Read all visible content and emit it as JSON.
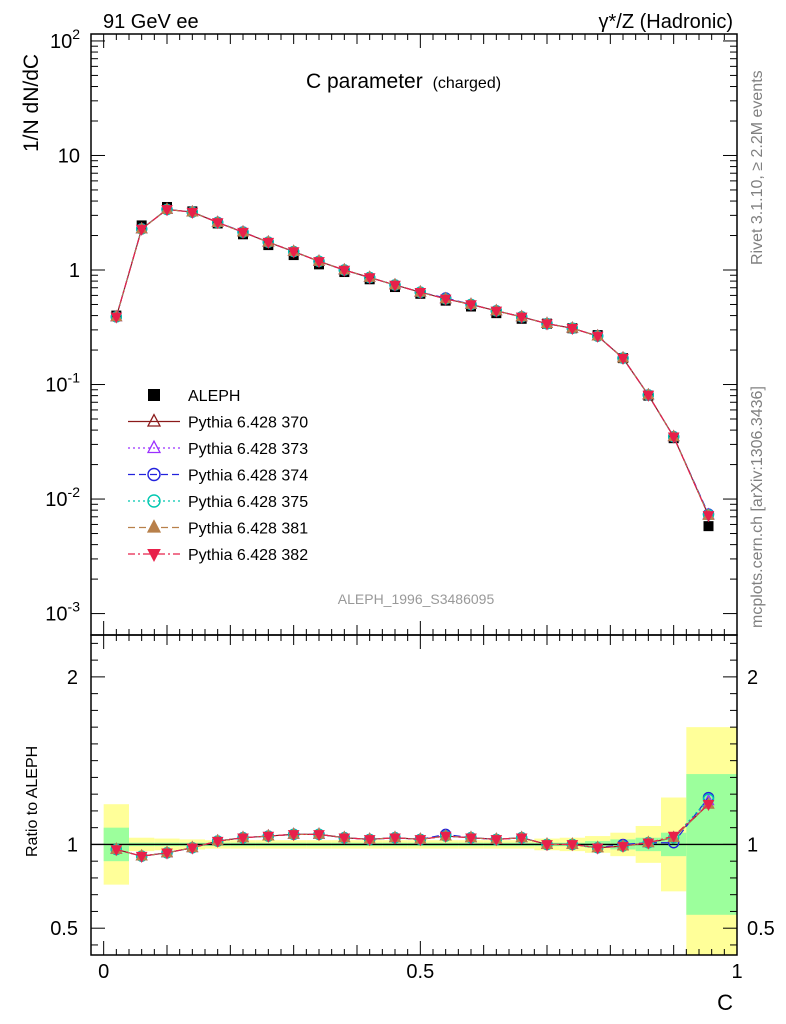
{
  "header": {
    "left": "91 GeV ee",
    "right": "γ*/Z (Hadronic)"
  },
  "side": {
    "rivet": "Rivet 3.1.10, ≥ 2.2M events",
    "mcplots": "mcplots.cern.ch [arXiv:1306.3436]"
  },
  "chart_data": [
    {
      "type": "scatter",
      "title": "C parameter",
      "subtitle": "(charged)",
      "ylabel": "1/N dN/dC",
      "ylog": true,
      "ylim": [
        0.00065,
        115
      ],
      "xlim": [
        -0.02,
        1.0
      ],
      "y_ticklabels": [
        {
          "v": 0.001,
          "base": "10",
          "exp": "-3"
        },
        {
          "v": 0.01,
          "base": "10",
          "exp": "-2"
        },
        {
          "v": 0.1,
          "base": "10",
          "exp": "-1"
        },
        {
          "v": 1,
          "base": "1",
          "exp": ""
        },
        {
          "v": 10,
          "base": "10",
          "exp": ""
        },
        {
          "v": 100,
          "base": "10",
          "exp": "2"
        }
      ],
      "watermark": "ALEPH_1996_S3486095",
      "legend_position": "middle-left",
      "x": [
        0.02,
        0.06,
        0.1,
        0.14,
        0.18,
        0.22,
        0.26,
        0.3,
        0.34,
        0.38,
        0.42,
        0.46,
        0.5,
        0.54,
        0.58,
        0.62,
        0.66,
        0.7,
        0.74,
        0.78,
        0.82,
        0.86,
        0.9,
        0.955
      ],
      "series": [
        {
          "name": "ALEPH",
          "color": "#000000",
          "marker": "square",
          "line": "none",
          "values": [
            0.4,
            2.45,
            3.55,
            3.25,
            2.55,
            2.05,
            1.65,
            1.35,
            1.12,
            0.96,
            0.83,
            0.71,
            0.62,
            0.54,
            0.48,
            0.42,
            0.375,
            0.34,
            0.31,
            0.27,
            0.17,
            0.08,
            0.034,
            0.0058
          ]
        },
        {
          "name": "Pythia 6.428 370",
          "color": "#8b1a1a",
          "marker": "triangle-open",
          "line": "solid",
          "values": [
            0.39,
            2.28,
            3.38,
            3.2,
            2.6,
            2.14,
            1.75,
            1.45,
            1.19,
            1.0,
            0.86,
            0.74,
            0.64,
            0.56,
            0.5,
            0.44,
            0.39,
            0.34,
            0.31,
            0.265,
            0.17,
            0.081,
            0.035,
            0.0072
          ]
        },
        {
          "name": "Pythia 6.428 373",
          "color": "#9b30ff",
          "marker": "triangle-open",
          "line": "dotted",
          "values": [
            0.39,
            2.28,
            3.37,
            3.2,
            2.6,
            2.14,
            1.75,
            1.45,
            1.19,
            1.0,
            0.86,
            0.74,
            0.64,
            0.56,
            0.5,
            0.44,
            0.39,
            0.34,
            0.31,
            0.265,
            0.17,
            0.081,
            0.035,
            0.0073
          ]
        },
        {
          "name": "Pythia 6.428 374",
          "color": "#2222dd",
          "marker": "circle-open",
          "line": "dashed",
          "values": [
            0.39,
            2.29,
            3.38,
            3.2,
            2.61,
            2.15,
            1.75,
            1.45,
            1.19,
            1.0,
            0.86,
            0.74,
            0.64,
            0.57,
            0.5,
            0.44,
            0.39,
            0.34,
            0.31,
            0.265,
            0.17,
            0.081,
            0.035,
            0.0074
          ]
        },
        {
          "name": "Pythia 6.428 375",
          "color": "#00c8b0",
          "marker": "circle-open",
          "line": "dotted",
          "values": [
            0.39,
            2.28,
            3.38,
            3.2,
            2.6,
            2.14,
            1.75,
            1.45,
            1.19,
            1.0,
            0.86,
            0.74,
            0.64,
            0.56,
            0.5,
            0.44,
            0.39,
            0.34,
            0.31,
            0.265,
            0.17,
            0.081,
            0.035,
            0.0073
          ]
        },
        {
          "name": "Pythia 6.428 381",
          "color": "#b8804a",
          "marker": "triangle-filled",
          "line": "dashed",
          "values": [
            0.39,
            2.28,
            3.38,
            3.2,
            2.6,
            2.14,
            1.75,
            1.45,
            1.19,
            1.0,
            0.86,
            0.74,
            0.64,
            0.56,
            0.5,
            0.44,
            0.39,
            0.34,
            0.31,
            0.265,
            0.17,
            0.081,
            0.035,
            0.0072
          ]
        },
        {
          "name": "Pythia 6.428 382",
          "color": "#e8204a",
          "marker": "triangle-down-filled",
          "line": "dashdot",
          "values": [
            0.39,
            2.28,
            3.38,
            3.2,
            2.6,
            2.14,
            1.75,
            1.45,
            1.19,
            1.0,
            0.86,
            0.74,
            0.64,
            0.56,
            0.5,
            0.44,
            0.39,
            0.34,
            0.31,
            0.265,
            0.17,
            0.081,
            0.035,
            0.0072
          ]
        }
      ]
    },
    {
      "type": "scatter",
      "ylabel": "Ratio to ALEPH",
      "xlabel": "C",
      "xlim": [
        -0.02,
        1.0
      ],
      "ylim": [
        0.34,
        2.25
      ],
      "x_ticklabels": [
        "0",
        "0.5",
        "1"
      ],
      "y_ticklabels": [
        "0.5",
        "1",
        "2"
      ],
      "reference_line": 1.0,
      "bins": [
        {
          "lo": 0.0,
          "hi": 0.04,
          "stat": [
            0.9,
            1.1
          ],
          "tot": [
            0.76,
            1.24
          ]
        },
        {
          "lo": 0.04,
          "hi": 0.08,
          "stat": [
            0.99,
            1.01
          ],
          "tot": [
            0.96,
            1.04
          ]
        },
        {
          "lo": 0.08,
          "hi": 0.12,
          "stat": [
            0.99,
            1.01
          ],
          "tot": [
            0.965,
            1.035
          ]
        },
        {
          "lo": 0.12,
          "hi": 0.16,
          "stat": [
            0.99,
            1.01
          ],
          "tot": [
            0.97,
            1.03
          ]
        },
        {
          "lo": 0.16,
          "hi": 0.2,
          "stat": [
            0.99,
            1.01
          ],
          "tot": [
            0.975,
            1.025
          ]
        },
        {
          "lo": 0.2,
          "hi": 0.24,
          "stat": [
            0.99,
            1.01
          ],
          "tot": [
            0.975,
            1.025
          ]
        },
        {
          "lo": 0.24,
          "hi": 0.28,
          "stat": [
            0.99,
            1.01
          ],
          "tot": [
            0.975,
            1.025
          ]
        },
        {
          "lo": 0.28,
          "hi": 0.32,
          "stat": [
            0.99,
            1.01
          ],
          "tot": [
            0.975,
            1.025
          ]
        },
        {
          "lo": 0.32,
          "hi": 0.36,
          "stat": [
            0.99,
            1.01
          ],
          "tot": [
            0.975,
            1.025
          ]
        },
        {
          "lo": 0.36,
          "hi": 0.4,
          "stat": [
            0.99,
            1.01
          ],
          "tot": [
            0.975,
            1.025
          ]
        },
        {
          "lo": 0.4,
          "hi": 0.44,
          "stat": [
            0.99,
            1.01
          ],
          "tot": [
            0.975,
            1.025
          ]
        },
        {
          "lo": 0.44,
          "hi": 0.48,
          "stat": [
            0.99,
            1.01
          ],
          "tot": [
            0.975,
            1.025
          ]
        },
        {
          "lo": 0.48,
          "hi": 0.52,
          "stat": [
            0.99,
            1.01
          ],
          "tot": [
            0.975,
            1.025
          ]
        },
        {
          "lo": 0.52,
          "hi": 0.56,
          "stat": [
            0.99,
            1.01
          ],
          "tot": [
            0.975,
            1.025
          ]
        },
        {
          "lo": 0.56,
          "hi": 0.6,
          "stat": [
            0.99,
            1.01
          ],
          "tot": [
            0.975,
            1.025
          ]
        },
        {
          "lo": 0.6,
          "hi": 0.64,
          "stat": [
            0.99,
            1.01
          ],
          "tot": [
            0.975,
            1.025
          ]
        },
        {
          "lo": 0.64,
          "hi": 0.68,
          "stat": [
            0.99,
            1.01
          ],
          "tot": [
            0.975,
            1.025
          ]
        },
        {
          "lo": 0.68,
          "hi": 0.72,
          "stat": [
            0.99,
            1.01
          ],
          "tot": [
            0.965,
            1.035
          ]
        },
        {
          "lo": 0.72,
          "hi": 0.76,
          "stat": [
            0.99,
            1.01
          ],
          "tot": [
            0.96,
            1.04
          ]
        },
        {
          "lo": 0.76,
          "hi": 0.8,
          "stat": [
            0.98,
            1.02
          ],
          "tot": [
            0.95,
            1.05
          ]
        },
        {
          "lo": 0.8,
          "hi": 0.84,
          "stat": [
            0.97,
            1.03
          ],
          "tot": [
            0.93,
            1.07
          ]
        },
        {
          "lo": 0.84,
          "hi": 0.88,
          "stat": [
            0.96,
            1.04
          ],
          "tot": [
            0.89,
            1.11
          ]
        },
        {
          "lo": 0.88,
          "hi": 0.92,
          "stat": [
            0.93,
            1.07
          ],
          "tot": [
            0.72,
            1.28
          ]
        },
        {
          "lo": 0.92,
          "hi": 1.0,
          "stat": [
            0.58,
            1.42
          ],
          "tot": [
            0.3,
            1.7
          ]
        }
      ],
      "series": [
        {
          "name": "Pythia 6.428 370",
          "values": [
            0.97,
            0.93,
            0.95,
            0.98,
            1.02,
            1.04,
            1.05,
            1.06,
            1.06,
            1.04,
            1.03,
            1.04,
            1.03,
            1.05,
            1.04,
            1.03,
            1.04,
            1.0,
            1.0,
            0.98,
            0.99,
            1.01,
            1.04,
            1.24
          ]
        },
        {
          "name": "Pythia 6.428 373",
          "values": [
            0.97,
            0.93,
            0.95,
            0.98,
            1.02,
            1.04,
            1.05,
            1.06,
            1.06,
            1.04,
            1.03,
            1.04,
            1.03,
            1.05,
            1.04,
            1.03,
            1.04,
            1.0,
            1.0,
            0.98,
            0.99,
            1.01,
            1.04,
            1.26
          ]
        },
        {
          "name": "Pythia 6.428 374",
          "values": [
            0.97,
            0.93,
            0.95,
            0.98,
            1.02,
            1.04,
            1.05,
            1.06,
            1.06,
            1.04,
            1.03,
            1.04,
            1.03,
            1.06,
            1.04,
            1.03,
            1.04,
            1.0,
            1.0,
            0.98,
            1.0,
            1.01,
            1.01,
            1.28
          ]
        },
        {
          "name": "Pythia 6.428 375",
          "values": [
            0.97,
            0.93,
            0.95,
            0.98,
            1.02,
            1.04,
            1.05,
            1.06,
            1.06,
            1.04,
            1.03,
            1.04,
            1.03,
            1.05,
            1.04,
            1.03,
            1.04,
            1.0,
            1.0,
            0.98,
            0.99,
            1.01,
            1.04,
            1.27
          ]
        },
        {
          "name": "Pythia 6.428 381",
          "values": [
            0.97,
            0.93,
            0.95,
            0.98,
            1.02,
            1.04,
            1.05,
            1.06,
            1.06,
            1.04,
            1.03,
            1.04,
            1.03,
            1.05,
            1.04,
            1.03,
            1.04,
            1.0,
            1.0,
            0.98,
            0.99,
            1.01,
            1.04,
            1.24
          ]
        },
        {
          "name": "Pythia 6.428 382",
          "values": [
            0.97,
            0.93,
            0.95,
            0.98,
            1.02,
            1.04,
            1.05,
            1.06,
            1.06,
            1.04,
            1.03,
            1.04,
            1.03,
            1.05,
            1.04,
            1.03,
            1.04,
            1.0,
            1.0,
            0.98,
            0.99,
            1.01,
            1.05,
            1.24
          ]
        }
      ],
      "band_colors": {
        "stat": "#9cff9c",
        "tot": "#ffff99"
      }
    }
  ]
}
